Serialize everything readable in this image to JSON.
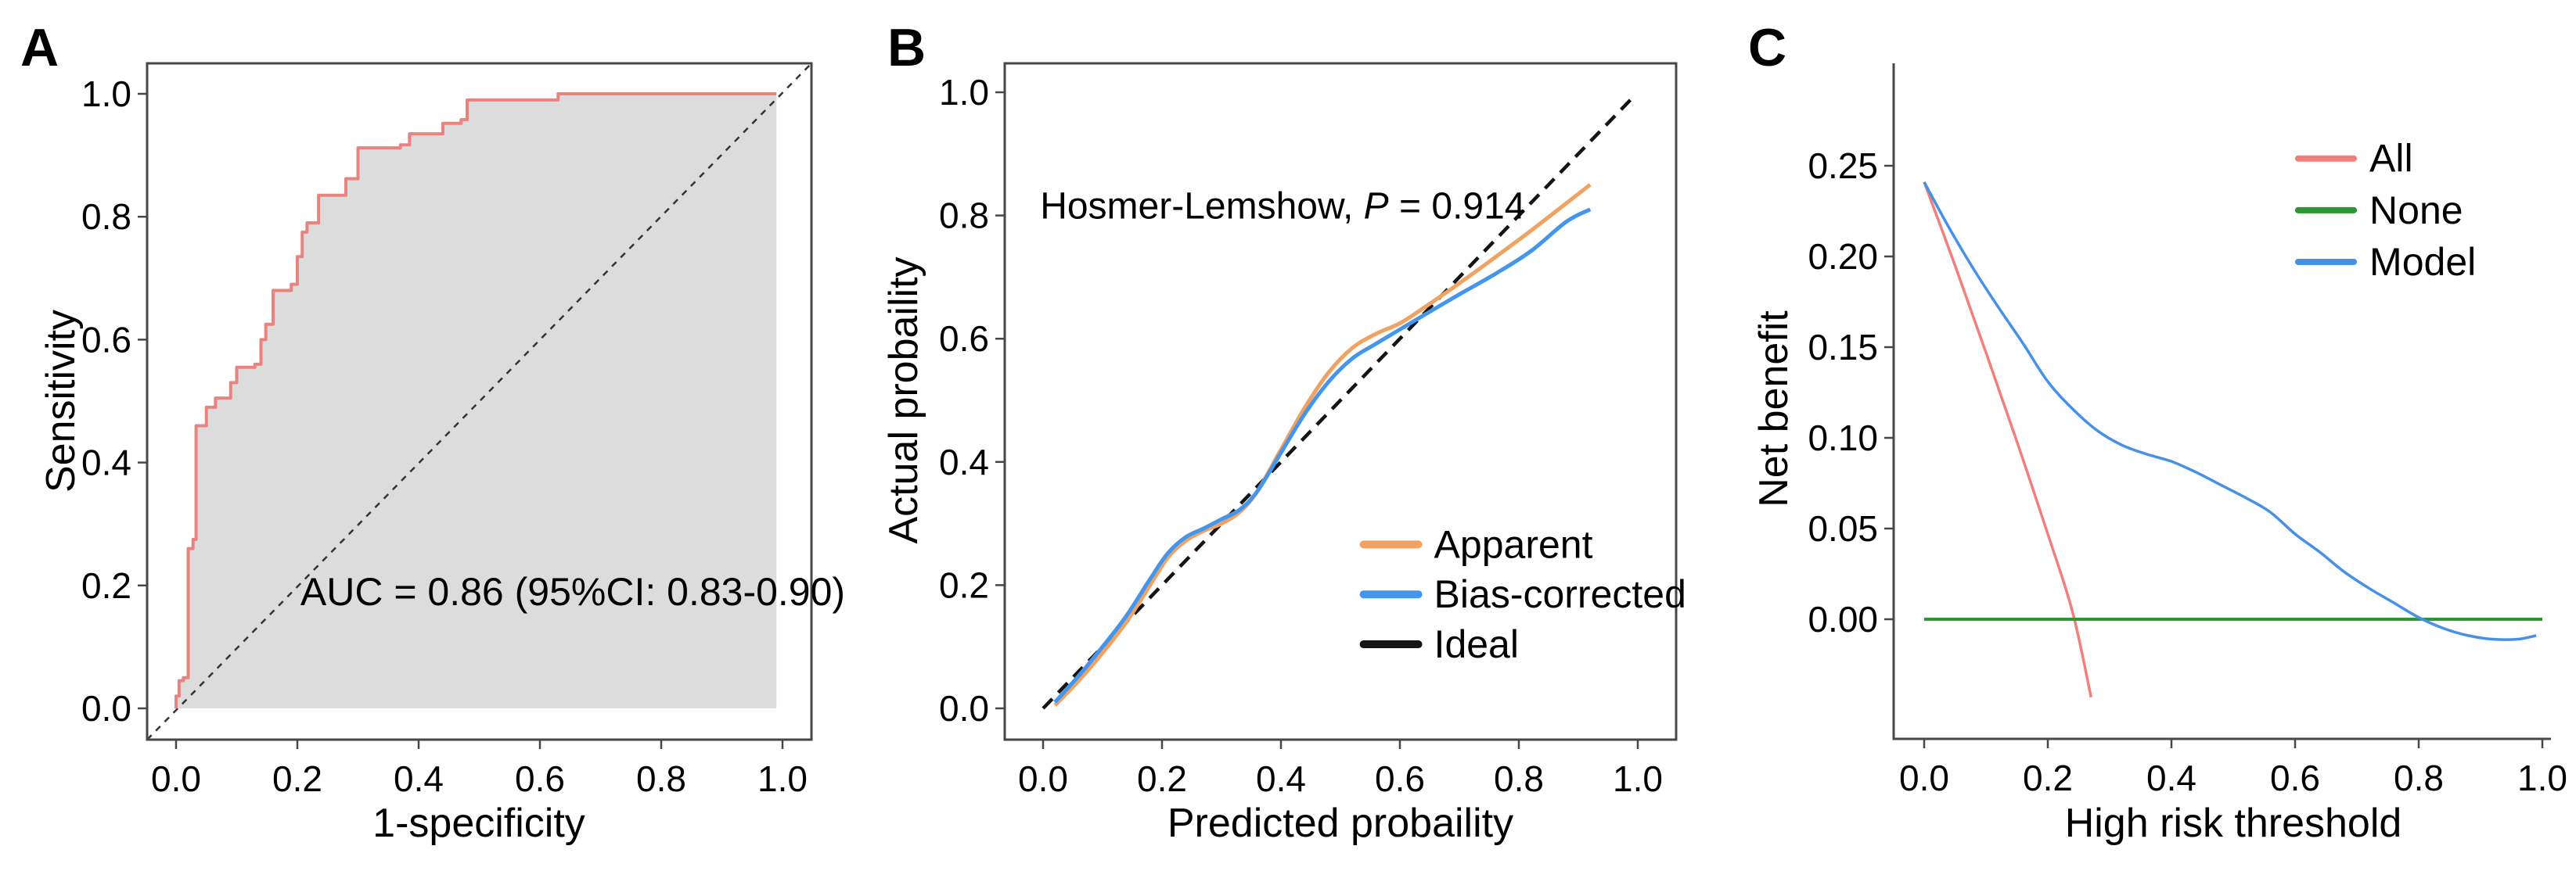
{
  "figure_title": "",
  "chart_data": [
    {
      "type": "line",
      "panel_label": "A",
      "xlabel": "1-specificity",
      "ylabel": "Sensitivity",
      "xlim": [
        -0.048,
        1.048
      ],
      "ylim": [
        -0.051,
        1.051
      ],
      "grid": false,
      "frame": "box",
      "frame_color": "#474747",
      "xticks": {
        "values": [
          0.0,
          0.2,
          0.4,
          0.6,
          0.8,
          1.0
        ],
        "labels": [
          "0.0",
          "0.2",
          "0.4",
          "0.6",
          "0.8",
          "1.0"
        ]
      },
      "yticks": {
        "values": [
          0.0,
          0.2,
          0.4,
          0.6,
          0.8,
          1.0
        ],
        "labels": [
          "0.0",
          "0.2",
          "0.4",
          "0.6",
          "0.8",
          "1.0"
        ]
      },
      "annotations": [
        {
          "id": "auc-annotation",
          "text": "AUC = 0.86 (95%CI: 0.83-0.90)",
          "x": 0.205,
          "y": 0.168,
          "anchor": "start",
          "size": 50
        }
      ],
      "series": [
        {
          "id": "chance-diagonal",
          "kind": "diagonal",
          "color": "#333333",
          "width": 2.5,
          "dash": [
            8,
            8
          ]
        },
        {
          "id": "roc-curve",
          "kind": "step",
          "color": "#e9837f",
          "width": 4,
          "fill": "#dcdcdc",
          "fill_baseline": 0,
          "points": [
            [
              0,
              0
            ],
            [
              0,
              0.02
            ],
            [
              0.005,
              0.02
            ],
            [
              0.005,
              0.045
            ],
            [
              0.012,
              0.045
            ],
            [
              0.012,
              0.05
            ],
            [
              0.02,
              0.05
            ],
            [
              0.02,
              0.26
            ],
            [
              0.028,
              0.26
            ],
            [
              0.028,
              0.275
            ],
            [
              0.033,
              0.275
            ],
            [
              0.033,
              0.46
            ],
            [
              0.05,
              0.46
            ],
            [
              0.05,
              0.49
            ],
            [
              0.065,
              0.49
            ],
            [
              0.065,
              0.505
            ],
            [
              0.09,
              0.505
            ],
            [
              0.09,
              0.53
            ],
            [
              0.1,
              0.53
            ],
            [
              0.1,
              0.555
            ],
            [
              0.13,
              0.555
            ],
            [
              0.13,
              0.56
            ],
            [
              0.14,
              0.56
            ],
            [
              0.14,
              0.6
            ],
            [
              0.148,
              0.6
            ],
            [
              0.148,
              0.625
            ],
            [
              0.16,
              0.625
            ],
            [
              0.16,
              0.68
            ],
            [
              0.19,
              0.68
            ],
            [
              0.19,
              0.69
            ],
            [
              0.2,
              0.69
            ],
            [
              0.2,
              0.735
            ],
            [
              0.208,
              0.735
            ],
            [
              0.208,
              0.775
            ],
            [
              0.216,
              0.775
            ],
            [
              0.216,
              0.79
            ],
            [
              0.235,
              0.79
            ],
            [
              0.235,
              0.835
            ],
            [
              0.28,
              0.835
            ],
            [
              0.28,
              0.862
            ],
            [
              0.3,
              0.862
            ],
            [
              0.3,
              0.912
            ],
            [
              0.37,
              0.912
            ],
            [
              0.37,
              0.917
            ],
            [
              0.385,
              0.917
            ],
            [
              0.385,
              0.935
            ],
            [
              0.44,
              0.935
            ],
            [
              0.44,
              0.952
            ],
            [
              0.47,
              0.952
            ],
            [
              0.47,
              0.958
            ],
            [
              0.48,
              0.958
            ],
            [
              0.48,
              0.99
            ],
            [
              0.63,
              0.99
            ],
            [
              0.63,
              1.0
            ],
            [
              0.99,
              1.0
            ]
          ]
        }
      ]
    },
    {
      "type": "line",
      "panel_label": "B",
      "xlabel": "Predicted probaility",
      "ylabel": "Actual probaility",
      "xlim": [
        -0.048,
        1.048
      ],
      "ylim": [
        -0.051,
        1.051
      ],
      "grid": false,
      "frame": "box",
      "frame_color": "#474747",
      "xticks": {
        "values": [
          0.0,
          0.2,
          0.4,
          0.6,
          0.8,
          1.0
        ],
        "labels": [
          "0.0",
          "0.2",
          "0.4",
          "0.6",
          "0.8",
          "1.0"
        ]
      },
      "yticks": {
        "values": [
          0.0,
          0.2,
          0.4,
          0.6,
          0.8,
          1.0
        ],
        "labels": [
          "0.0",
          "0.2",
          "0.4",
          "0.6",
          "0.8",
          "1.0"
        ]
      },
      "annotations": [
        {
          "id": "hosmer-annotation",
          "pre": "Hosmer-Lemshow, ",
          "italic": "P",
          "post": " = 0.914",
          "x": -0.005,
          "y": 0.795,
          "anchor": "start",
          "size": 48
        }
      ],
      "legend": {
        "x": 0.539,
        "y": 0.266,
        "dy": 0.081,
        "swatch_len": 0.092,
        "swatch_stroke": 10,
        "font_size": 50,
        "items": [
          {
            "label": "Apparent",
            "color": "#f0a262"
          },
          {
            "label": "Bias-corrected",
            "color": "#4495ee"
          },
          {
            "label": "Ideal",
            "color": "#141414"
          }
        ]
      },
      "series": [
        {
          "id": "ideal-line",
          "kind": "line",
          "color": "#141414",
          "width": 4.5,
          "dash": [
            17,
            11
          ],
          "points": [
            [
              0,
              0
            ],
            [
              0.99,
              0.99
            ]
          ]
        },
        {
          "id": "apparent-curve",
          "kind": "smooth",
          "color": "#f0a262",
          "width": 5,
          "points": [
            [
              0.02,
              0.005
            ],
            [
              0.06,
              0.045
            ],
            [
              0.1,
              0.09
            ],
            [
              0.14,
              0.14
            ],
            [
              0.18,
              0.2
            ],
            [
              0.21,
              0.245
            ],
            [
              0.24,
              0.272
            ],
            [
              0.27,
              0.288
            ],
            [
              0.3,
              0.3
            ],
            [
              0.33,
              0.318
            ],
            [
              0.36,
              0.352
            ],
            [
              0.4,
              0.42
            ],
            [
              0.44,
              0.488
            ],
            [
              0.48,
              0.545
            ],
            [
              0.52,
              0.585
            ],
            [
              0.56,
              0.608
            ],
            [
              0.6,
              0.625
            ],
            [
              0.64,
              0.65
            ],
            [
              0.7,
              0.69
            ],
            [
              0.76,
              0.732
            ],
            [
              0.82,
              0.775
            ],
            [
              0.88,
              0.82
            ],
            [
              0.92,
              0.85
            ]
          ]
        },
        {
          "id": "bias-corrected-curve",
          "kind": "smooth",
          "color": "#4495ee",
          "width": 5,
          "points": [
            [
              0.02,
              0.01
            ],
            [
              0.06,
              0.053
            ],
            [
              0.1,
              0.1
            ],
            [
              0.14,
              0.15
            ],
            [
              0.18,
              0.21
            ],
            [
              0.21,
              0.252
            ],
            [
              0.24,
              0.278
            ],
            [
              0.27,
              0.292
            ],
            [
              0.3,
              0.307
            ],
            [
              0.33,
              0.322
            ],
            [
              0.36,
              0.352
            ],
            [
              0.4,
              0.415
            ],
            [
              0.44,
              0.478
            ],
            [
              0.48,
              0.53
            ],
            [
              0.52,
              0.568
            ],
            [
              0.56,
              0.592
            ],
            [
              0.6,
              0.615
            ],
            [
              0.64,
              0.638
            ],
            [
              0.7,
              0.672
            ],
            [
              0.76,
              0.705
            ],
            [
              0.82,
              0.742
            ],
            [
              0.88,
              0.79
            ],
            [
              0.92,
              0.81
            ]
          ]
        }
      ]
    },
    {
      "type": "line",
      "panel_label": "C",
      "xlabel": "High risk threshold",
      "ylabel": "Net benefit",
      "xlim": [
        -0.047,
        1.015
      ],
      "ylim": [
        -0.066,
        0.306
      ],
      "grid": false,
      "frame": "lb",
      "frame_color": "#474747",
      "xticks": {
        "values": [
          0.0,
          0.2,
          0.4,
          0.6,
          0.8,
          1.0
        ],
        "labels": [
          "0.0",
          "0.2",
          "0.4",
          "0.6",
          "0.8",
          "1.0"
        ]
      },
      "yticks": {
        "values": [
          0.0,
          0.05,
          0.1,
          0.15,
          0.2,
          0.25
        ],
        "labels": [
          "0.00",
          "0.05",
          "0.10",
          "0.15",
          "0.20",
          "0.25"
        ]
      },
      "annotations": [],
      "legend": {
        "x": 0.605,
        "y": 0.254,
        "dy": 0.0285,
        "swatch_len": 0.09,
        "swatch_stroke": 8,
        "font_size": 50,
        "items": [
          {
            "label": "All",
            "color": "#f17f7d"
          },
          {
            "label": "None",
            "color": "#2b9634"
          },
          {
            "label": "Model",
            "color": "#4690e6"
          }
        ]
      },
      "series": [
        {
          "id": "all-curve",
          "kind": "smooth",
          "color": "#f17f7d",
          "width": 3.5,
          "points": [
            [
              0,
              0.241
            ],
            [
              0.05,
              0.195
            ],
            [
              0.1,
              0.147
            ],
            [
              0.15,
              0.098
            ],
            [
              0.2,
              0.047
            ],
            [
              0.24,
              0.004
            ],
            [
              0.27,
              -0.043
            ]
          ]
        },
        {
          "id": "none-line",
          "kind": "line",
          "color": "#2b9634",
          "width": 4,
          "points": [
            [
              0,
              0
            ],
            [
              1.0,
              0
            ]
          ]
        },
        {
          "id": "model-curve",
          "kind": "smooth",
          "color": "#4690e6",
          "width": 3.5,
          "points": [
            [
              0,
              0.241
            ],
            [
              0.04,
              0.216
            ],
            [
              0.08,
              0.193
            ],
            [
              0.12,
              0.172
            ],
            [
              0.16,
              0.152
            ],
            [
              0.2,
              0.131
            ],
            [
              0.24,
              0.116
            ],
            [
              0.28,
              0.104
            ],
            [
              0.32,
              0.096
            ],
            [
              0.36,
              0.091
            ],
            [
              0.4,
              0.087
            ],
            [
              0.44,
              0.081
            ],
            [
              0.48,
              0.074
            ],
            [
              0.52,
              0.067
            ],
            [
              0.56,
              0.059
            ],
            [
              0.6,
              0.047
            ],
            [
              0.64,
              0.037
            ],
            [
              0.68,
              0.026
            ],
            [
              0.72,
              0.017
            ],
            [
              0.76,
              0.009
            ],
            [
              0.8,
              0.001
            ],
            [
              0.84,
              -0.005
            ],
            [
              0.88,
              -0.009
            ],
            [
              0.92,
              -0.011
            ],
            [
              0.96,
              -0.011
            ],
            [
              0.99,
              -0.009
            ]
          ]
        }
      ]
    }
  ]
}
